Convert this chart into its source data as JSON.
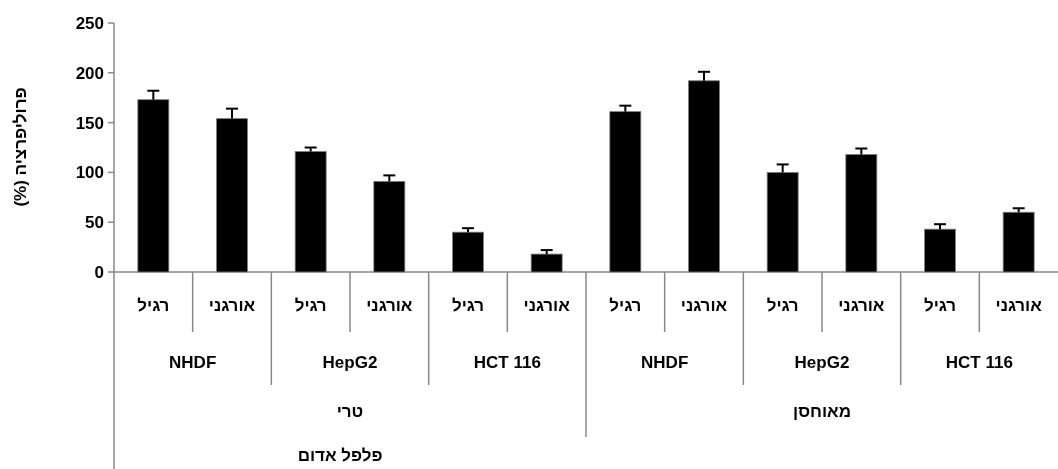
{
  "chart_data": {
    "type": "bar",
    "categories": [
      "רגיל",
      "אורגני",
      "רגיל",
      "אורגני",
      "רגיל",
      "אורגני",
      "רגיל",
      "אורגני",
      "רגיל",
      "אורגני",
      "רגיל",
      "אורגני"
    ],
    "values": [
      173,
      154,
      121,
      91,
      40,
      18,
      161,
      192,
      100,
      118,
      43,
      60
    ],
    "errors": [
      [
        173,
        182
      ],
      [
        154,
        164
      ],
      [
        121,
        125
      ],
      [
        91,
        97
      ],
      [
        40,
        44
      ],
      [
        18,
        22
      ],
      [
        161,
        167
      ],
      [
        192,
        201
      ],
      [
        100,
        108
      ],
      [
        118,
        124
      ],
      [
        43,
        48
      ],
      [
        60,
        64
      ]
    ],
    "color": "#000000",
    "ylim": [
      0,
      250
    ],
    "yticks": [
      0,
      50,
      100,
      150,
      200,
      250
    ],
    "ylabel": "פרוליפרציה (%)",
    "annotations": [
      "NHDF",
      "HepG2",
      "HCT 116",
      "NHDF",
      "HepG2",
      "HCT 116",
      "טרי",
      "מאוחסן",
      "פלפל אדום"
    ]
  }
}
